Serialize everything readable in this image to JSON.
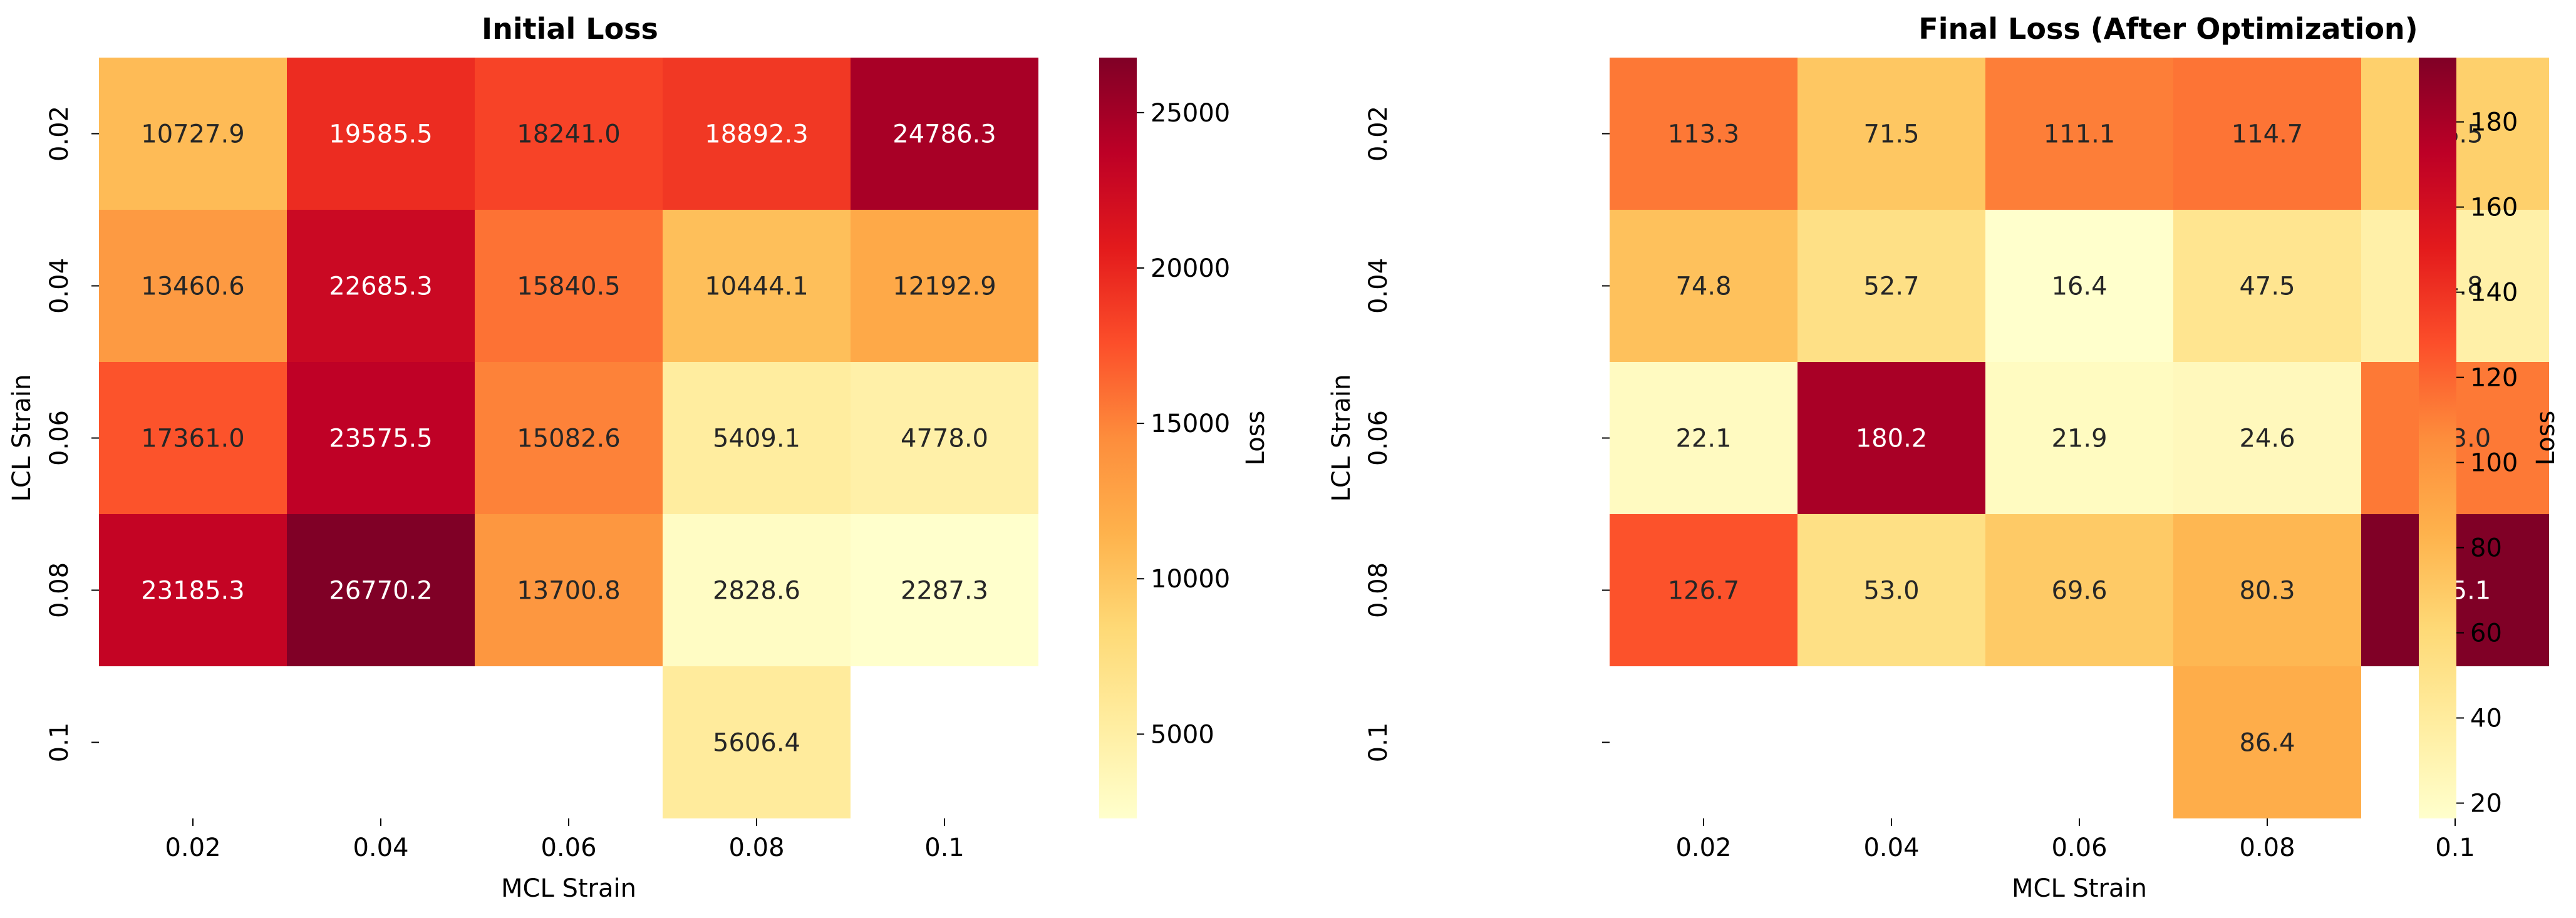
{
  "chart_data": [
    {
      "type": "heatmap",
      "title": "Initial Loss",
      "xlabel": "MCL Strain",
      "ylabel": "LCL Strain",
      "x_categories": [
        "0.02",
        "0.04",
        "0.06",
        "0.08",
        "0.1"
      ],
      "y_categories": [
        "0.02",
        "0.04",
        "0.06",
        "0.08",
        "0.1"
      ],
      "values": [
        [
          10727.9,
          19585.5,
          18241.0,
          18892.3,
          24786.3
        ],
        [
          13460.6,
          22685.3,
          15840.5,
          10444.1,
          12192.9
        ],
        [
          17361.0,
          23575.5,
          15082.6,
          5409.1,
          4778.0
        ],
        [
          23185.3,
          26770.2,
          13700.8,
          2828.6,
          2287.3
        ],
        [
          null,
          null,
          null,
          5606.4,
          null
        ]
      ],
      "value_labels": [
        [
          "10727.9",
          "19585.5",
          "18241.0",
          "18892.3",
          "24786.3"
        ],
        [
          "13460.6",
          "22685.3",
          "15840.5",
          "10444.1",
          "12192.9"
        ],
        [
          "17361.0",
          "23575.5",
          "15082.6",
          "5409.1",
          "4778.0"
        ],
        [
          "23185.3",
          "26770.2",
          "13700.8",
          "2828.6",
          "2287.3"
        ],
        [
          null,
          null,
          null,
          "5606.4",
          null
        ]
      ],
      "colorbar": {
        "label": "Loss",
        "range": [
          2287.3,
          26770.2
        ],
        "ticks": [
          5000,
          10000,
          15000,
          20000,
          25000
        ],
        "tick_labels": [
          "5000",
          "10000",
          "15000",
          "20000",
          "25000"
        ]
      },
      "colormap": "YlOrRd"
    },
    {
      "type": "heatmap",
      "title": "Final Loss (After Optimization)",
      "xlabel": "MCL Strain",
      "ylabel": "LCL Strain",
      "x_categories": [
        "0.02",
        "0.04",
        "0.06",
        "0.08",
        "0.1"
      ],
      "y_categories": [
        "0.02",
        "0.04",
        "0.06",
        "0.08",
        "0.1"
      ],
      "values": [
        [
          113.3,
          71.5,
          111.1,
          114.7,
          66.5
        ],
        [
          74.8,
          52.7,
          16.4,
          47.5,
          34.8
        ],
        [
          22.1,
          180.2,
          21.9,
          24.6,
          113.0
        ],
        [
          126.7,
          53.0,
          69.6,
          80.3,
          195.1
        ],
        [
          null,
          null,
          null,
          86.4,
          null
        ]
      ],
      "value_labels": [
        [
          "113.3",
          "71.5",
          "111.1",
          "114.7",
          "66.5"
        ],
        [
          "74.8",
          "52.7",
          "16.4",
          "47.5",
          "34.8"
        ],
        [
          "22.1",
          "180.2",
          "21.9",
          "24.6",
          "113.0"
        ],
        [
          "126.7",
          "53.0",
          "69.6",
          "80.3",
          "195.1"
        ],
        [
          null,
          null,
          null,
          "86.4",
          null
        ]
      ],
      "colorbar": {
        "label": "Loss",
        "range": [
          16.4,
          195.1
        ],
        "ticks": [
          20,
          40,
          60,
          80,
          100,
          120,
          140,
          160,
          180
        ],
        "tick_labels": [
          "20",
          "40",
          "60",
          "80",
          "100",
          "120",
          "140",
          "160",
          "180"
        ]
      },
      "colormap": "YlOrRd"
    }
  ],
  "colors": {
    "colormap_stops": [
      "#ffffcc",
      "#ffeda0",
      "#fed976",
      "#feb24c",
      "#fd8d3c",
      "#fc4e2a",
      "#e31a1c",
      "#bd0026",
      "#800026"
    ],
    "text_dark": "#262626",
    "text_light": "#ffffff"
  }
}
